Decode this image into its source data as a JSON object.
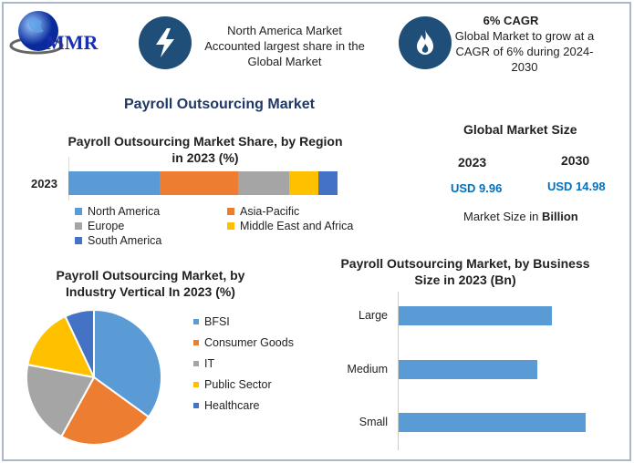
{
  "logo": {
    "text": "MMR"
  },
  "header": {
    "highlight1": {
      "icon": "lightning-icon",
      "lines": [
        "North America Market",
        "Accounted largest share in the",
        "Global Market"
      ]
    },
    "highlight2": {
      "icon": "flame-icon",
      "title": "6% CAGR",
      "lines": [
        "Global Market to grow at a",
        "CAGR of 6% during 2024-2030"
      ]
    }
  },
  "main_title": "Payroll Outsourcing Market",
  "market_size": {
    "title": "Global Market Size",
    "years": [
      "2023",
      "2030"
    ],
    "values": [
      "USD 9.96",
      "USD 14.98"
    ],
    "note_prefix": "Market Size in ",
    "note_unit": "Billion"
  },
  "colors": {
    "navy": "#1f4e79",
    "blue": "#5b9bd5",
    "orange": "#ed7d31",
    "gray": "#a5a5a5",
    "yellow": "#ffc000",
    "darkblue": "#4472c4"
  },
  "chart_data": [
    {
      "type": "bar",
      "stacked": true,
      "orientation": "horizontal",
      "title_lines": [
        "Payroll Outsourcing Market Share, by Region",
        "in 2023 (%)"
      ],
      "categories": [
        "2023"
      ],
      "series": [
        {
          "name": "North America",
          "values": [
            34
          ],
          "color": "#5b9bd5"
        },
        {
          "name": "Asia-Pacific",
          "values": [
            29
          ],
          "color": "#ed7d31"
        },
        {
          "name": "Europe",
          "values": [
            19
          ],
          "color": "#a5a5a5"
        },
        {
          "name": "Middle East and Africa",
          "values": [
            11
          ],
          "color": "#ffc000"
        },
        {
          "name": "South America",
          "values": [
            7
          ],
          "color": "#4472c4"
        }
      ],
      "legend": "bottom"
    },
    {
      "type": "pie",
      "title_lines": [
        "Payroll Outsourcing Market, by",
        "Industry Vertical In 2023 (%)"
      ],
      "categories": [
        "BFSI",
        "Consumer Goods",
        "IT",
        "Public Sector",
        "Healthcare"
      ],
      "values": [
        35,
        23,
        20,
        15,
        7
      ],
      "colors": [
        "#5b9bd5",
        "#ed7d31",
        "#a5a5a5",
        "#ffc000",
        "#4472c4"
      ],
      "legend": "right"
    },
    {
      "type": "bar",
      "orientation": "horizontal",
      "title_lines": [
        "Payroll Outsourcing Market, by Business",
        "Size in 2023 (Bn)"
      ],
      "categories": [
        "Large",
        "Medium",
        "Small"
      ],
      "values": [
        3.2,
        2.9,
        3.9
      ],
      "color": "#5b9bd5",
      "grid": false
    }
  ]
}
